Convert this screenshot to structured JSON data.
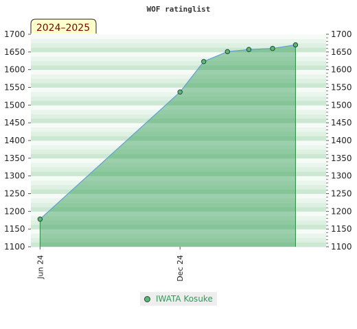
{
  "chart_data": {
    "type": "area",
    "title": "WOF ratinglist",
    "season_label": "2024–2025",
    "ylim": [
      1100,
      1700
    ],
    "yticks": [
      1100,
      1150,
      1200,
      1250,
      1300,
      1350,
      1400,
      1450,
      1500,
      1550,
      1600,
      1650,
      1700
    ],
    "x_range": [
      "2024-05-20",
      "2025-06-10"
    ],
    "x_ticks": [
      {
        "label": "Jun 24",
        "date": "2024-06-01"
      },
      {
        "label": "Dec 24",
        "date": "2024-12-01"
      }
    ],
    "series": [
      {
        "name": "IWATA Kosuke",
        "color": "#5fb57a",
        "points": [
          {
            "date": "2024-06-01",
            "value": 1178
          },
          {
            "date": "2024-12-01",
            "value": 1537
          },
          {
            "date": "2025-01-01",
            "value": 1623
          },
          {
            "date": "2025-02-01",
            "value": 1651
          },
          {
            "date": "2025-03-01",
            "value": 1657
          },
          {
            "date": "2025-04-01",
            "value": 1660
          },
          {
            "date": "2025-05-01",
            "value": 1670
          }
        ]
      }
    ],
    "grid": true,
    "legend_position": "bottom"
  }
}
